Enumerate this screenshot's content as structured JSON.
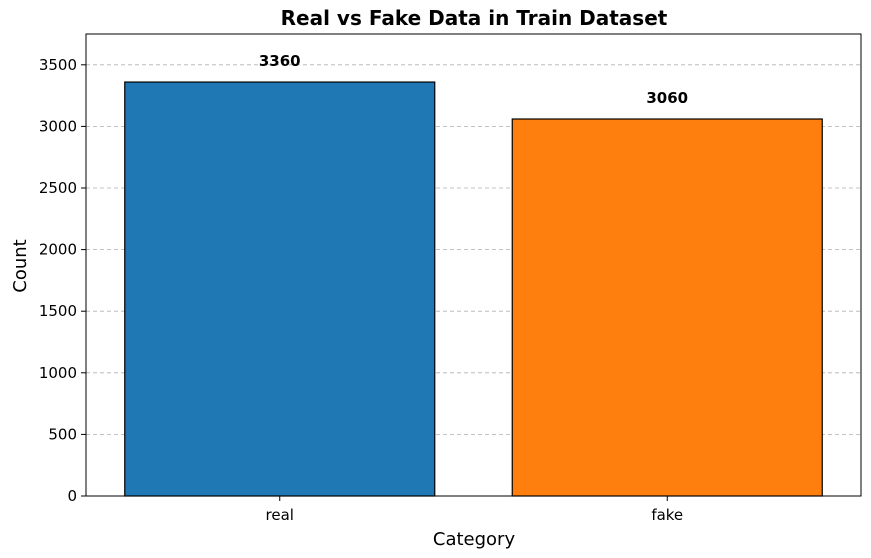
{
  "chart_data": {
    "type": "bar",
    "title": "Real vs Fake Data in Train Dataset",
    "xlabel": "Category",
    "ylabel": "Count",
    "categories": [
      "real",
      "fake"
    ],
    "values": [
      3360,
      3060
    ],
    "data_labels": [
      "3360",
      "3060"
    ],
    "colors": [
      "#1f77b4",
      "#ff7f0e"
    ],
    "edge_color": "#000000",
    "ylim": [
      0,
      3750
    ],
    "yticks": [
      0,
      500,
      1000,
      1500,
      2000,
      2500,
      3000,
      3500
    ],
    "ytick_labels": [
      "0",
      "500",
      "1000",
      "1500",
      "2000",
      "2500",
      "3000",
      "3500"
    ],
    "grid": "y-dashed"
  }
}
